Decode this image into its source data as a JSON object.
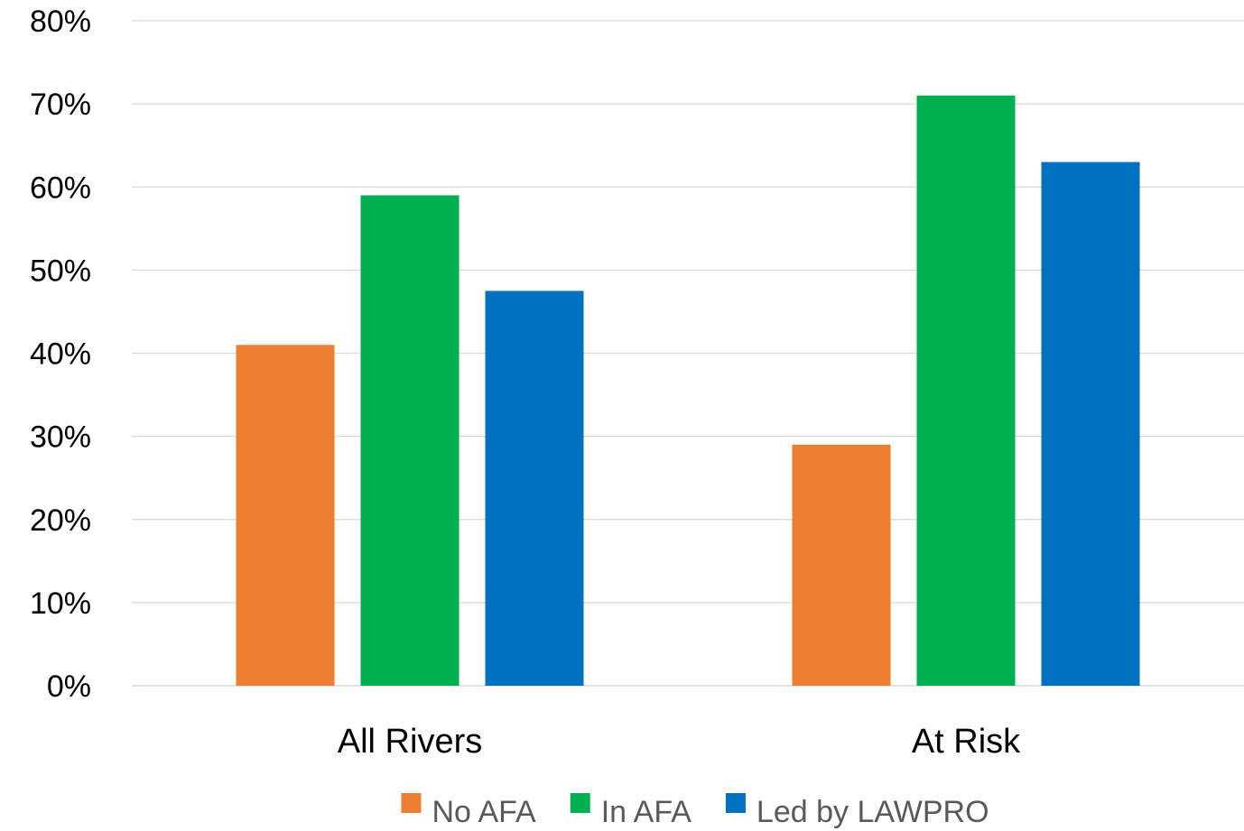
{
  "chart_data": {
    "type": "bar",
    "title": "",
    "xlabel": "",
    "ylabel": "",
    "categories": [
      "All Rivers",
      "At Risk"
    ],
    "series": [
      {
        "name": "No AFA",
        "color": "#ED7D31",
        "values": [
          0.41,
          0.29
        ]
      },
      {
        "name": "In AFA",
        "color": "#00B050",
        "values": [
          0.59,
          0.71
        ]
      },
      {
        "name": "Led by LAWPRO",
        "color": "#0070C0",
        "values": [
          0.475,
          0.63
        ]
      }
    ],
    "ylim": [
      0,
      0.8
    ],
    "y_ticks": [
      0,
      0.1,
      0.2,
      0.3,
      0.4,
      0.5,
      0.6,
      0.7,
      0.8
    ],
    "y_tick_labels": [
      "0%",
      "10%",
      "20%",
      "30%",
      "40%",
      "50%",
      "60%",
      "70%",
      "80%"
    ],
    "grid": true,
    "legend_position": "bottom"
  }
}
